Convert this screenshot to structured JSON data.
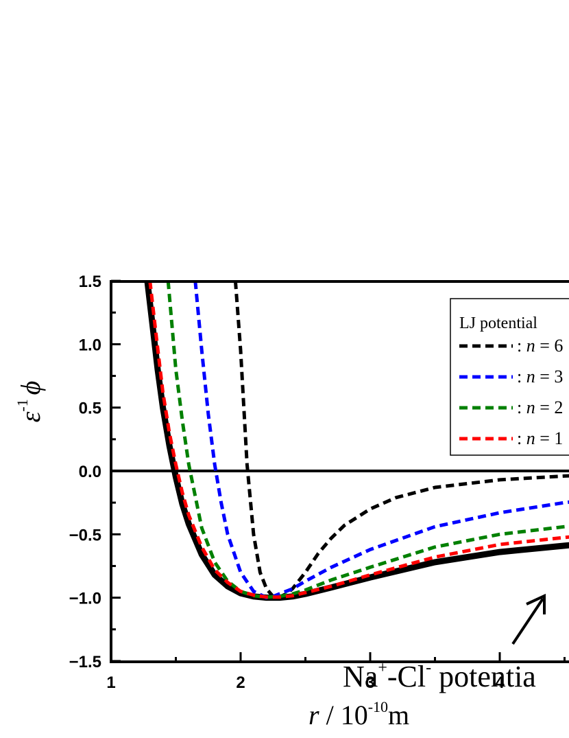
{
  "chart_data": {
    "type": "line",
    "xlabel": {
      "var": "r",
      "rest": " / 10",
      "exp": "-10",
      "unit": "m"
    },
    "ylabel": {
      "var1": "ε",
      "exp": "-1",
      "var2": "ϕ"
    },
    "xlim": [
      1,
      4.6
    ],
    "ylim": [
      -1.5,
      1.5
    ],
    "x_ticks": [
      "1",
      "2",
      "3",
      "4"
    ],
    "y_ticks": [
      "1.5",
      "1.0",
      "0.5",
      "0.0",
      "−0.5",
      "−1.0",
      "−1.5"
    ],
    "legend": {
      "title": "LJ potential",
      "entries": [
        {
          "prefix": ": ",
          "var": "n",
          "rest": " = 6",
          "color": "#000000"
        },
        {
          "prefix": ": ",
          "var": "n",
          "rest": " = 3",
          "color": "#0000ff"
        },
        {
          "prefix": ": ",
          "var": "n",
          "rest": " = 2",
          "color": "#008000"
        },
        {
          "prefix": ": ",
          "var": "n",
          "rest": " = 1",
          "color": "#ff0000"
        }
      ]
    },
    "annotation": {
      "a": "Na",
      "sup1": "+",
      "b": "-Cl",
      "sup2": "-",
      "c": " potentia"
    },
    "series": [
      {
        "color": "#000000",
        "style": "dashed",
        "x": [
          1.96,
          2.0,
          2.05,
          2.1,
          2.15,
          2.2,
          2.25,
          2.3,
          2.35,
          2.4,
          2.5,
          2.6,
          2.7,
          2.8,
          3.0,
          3.2,
          3.5,
          4.0,
          4.5,
          4.6
        ],
        "y": [
          1.5,
          0.95,
          0.05,
          -0.5,
          -0.8,
          -0.93,
          -0.99,
          -0.995,
          -0.97,
          -0.93,
          -0.8,
          -0.65,
          -0.53,
          -0.43,
          -0.3,
          -0.21,
          -0.13,
          -0.07,
          -0.04,
          -0.035
        ]
      },
      {
        "color": "#0000ff",
        "style": "dashed",
        "x": [
          1.65,
          1.7,
          1.75,
          1.8,
          1.85,
          1.9,
          2.0,
          2.1,
          2.2,
          2.25,
          2.3,
          2.4,
          2.5,
          2.7,
          3.0,
          3.5,
          4.0,
          4.5,
          4.6
        ],
        "y": [
          1.5,
          0.95,
          0.45,
          0.05,
          -0.25,
          -0.5,
          -0.8,
          -0.95,
          -1.0,
          -0.99,
          -0.97,
          -0.93,
          -0.87,
          -0.76,
          -0.62,
          -0.44,
          -0.33,
          -0.25,
          -0.24
        ]
      },
      {
        "color": "#008000",
        "style": "dashed",
        "x": [
          1.44,
          1.5,
          1.55,
          1.6,
          1.7,
          1.8,
          1.9,
          2.0,
          2.1,
          2.2,
          2.3,
          2.4,
          2.5,
          2.7,
          3.0,
          3.5,
          4.0,
          4.5,
          4.6
        ],
        "y": [
          1.5,
          0.8,
          0.4,
          0.05,
          -0.45,
          -0.72,
          -0.87,
          -0.95,
          -0.985,
          -0.995,
          -0.99,
          -0.97,
          -0.94,
          -0.86,
          -0.76,
          -0.6,
          -0.5,
          -0.44,
          -0.43
        ]
      },
      {
        "color": "#ff0000",
        "style": "dashed",
        "x": [
          1.3,
          1.35,
          1.4,
          1.45,
          1.5,
          1.55,
          1.6,
          1.7,
          1.8,
          1.9,
          2.0,
          2.1,
          2.2,
          2.3,
          2.4,
          2.5,
          2.7,
          3.0,
          3.5,
          4.0,
          4.5,
          4.6
        ],
        "y": [
          1.5,
          1.05,
          0.62,
          0.3,
          0.05,
          -0.17,
          -0.35,
          -0.6,
          -0.78,
          -0.88,
          -0.95,
          -0.98,
          -0.995,
          -0.995,
          -0.985,
          -0.96,
          -0.91,
          -0.82,
          -0.68,
          -0.58,
          -0.525,
          -0.515
        ]
      },
      {
        "color": "#000000",
        "style": "solid",
        "x": [
          1.28,
          1.32,
          1.36,
          1.4,
          1.45,
          1.5,
          1.55,
          1.6,
          1.7,
          1.8,
          1.9,
          2.0,
          2.1,
          2.2,
          2.3,
          2.4,
          2.5,
          2.7,
          3.0,
          3.5,
          4.0,
          4.5,
          4.6
        ],
        "y": [
          1.5,
          1.15,
          0.8,
          0.5,
          0.2,
          -0.05,
          -0.26,
          -0.42,
          -0.66,
          -0.82,
          -0.91,
          -0.965,
          -0.99,
          -1.0,
          -1.0,
          -0.99,
          -0.97,
          -0.92,
          -0.84,
          -0.72,
          -0.64,
          -0.59,
          -0.58
        ]
      }
    ]
  }
}
